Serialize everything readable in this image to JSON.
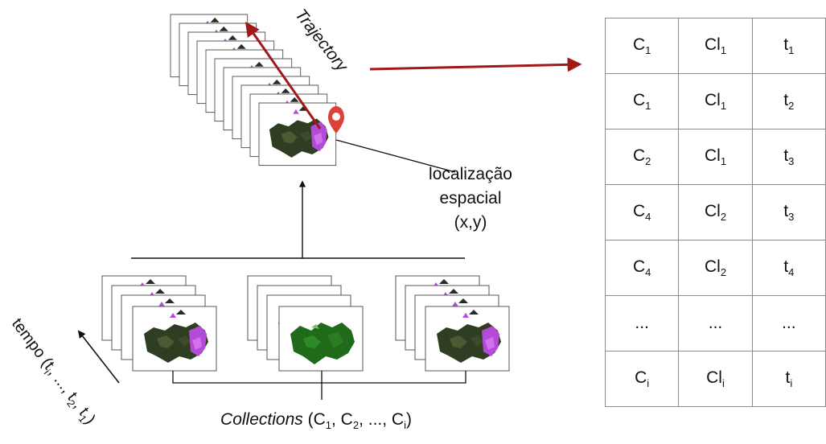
{
  "labels": {
    "trajectory": "Trajectory",
    "location_line1": "localização",
    "location_line2": "espacial",
    "location_line3": "(x,y)",
    "tempo_prefix": "tempo (t",
    "tempo_sub1": "i",
    "tempo_mid": ", ..., t",
    "tempo_sub2": "2",
    "tempo_comma": ", t",
    "tempo_sub3": "1",
    "tempo_suffix": ")",
    "collections_word": "Collections",
    "collections_prefix": " (C",
    "collections_sub1": "1",
    "collections_sep1": ", C",
    "collections_sub2": "2",
    "collections_sep2": ", ..., C",
    "collections_sub3": "i",
    "collections_suffix": ")"
  },
  "colors": {
    "trajectory_arrow": "#a01818",
    "map_dark": "#2f3d22",
    "map_green": "#1f6b1a",
    "map_purple": "#b44bd8",
    "marker": "#e0403c"
  },
  "icons": [
    "location-pin-icon",
    "amazon-map-thumbnail"
  ],
  "table": {
    "rows": [
      [
        {
          "main": "C",
          "sub": "1"
        },
        {
          "main": "Cl",
          "sub": "1"
        },
        {
          "main": "t",
          "sub": "1"
        }
      ],
      [
        {
          "main": "C",
          "sub": "1"
        },
        {
          "main": "Cl",
          "sub": "1"
        },
        {
          "main": "t",
          "sub": "2"
        }
      ],
      [
        {
          "main": "C",
          "sub": "2"
        },
        {
          "main": "Cl",
          "sub": "1"
        },
        {
          "main": "t",
          "sub": "3"
        }
      ],
      [
        {
          "main": "C",
          "sub": "4"
        },
        {
          "main": "Cl",
          "sub": "2"
        },
        {
          "main": "t",
          "sub": "3"
        }
      ],
      [
        {
          "main": "C",
          "sub": "4"
        },
        {
          "main": "Cl",
          "sub": "2"
        },
        {
          "main": "t",
          "sub": "4"
        }
      ],
      [
        {
          "main": "...",
          "sub": ""
        },
        {
          "main": "...",
          "sub": ""
        },
        {
          "main": "...",
          "sub": ""
        }
      ],
      [
        {
          "main": "C",
          "sub": "i"
        },
        {
          "main": "Cl",
          "sub": "i"
        },
        {
          "main": "t",
          "sub": "i"
        }
      ]
    ]
  }
}
